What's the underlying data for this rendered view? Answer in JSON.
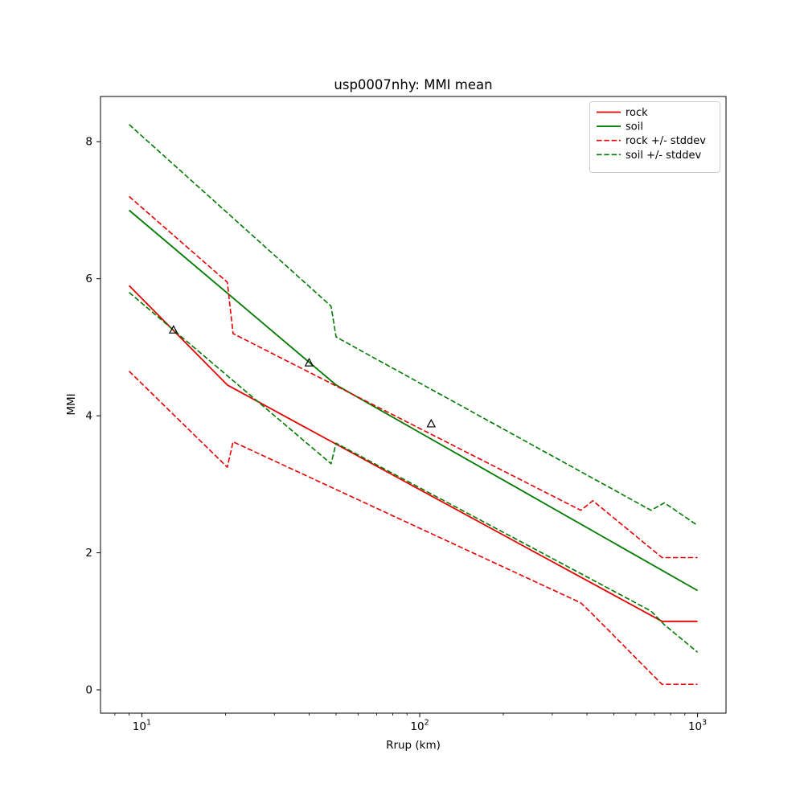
{
  "figure": {
    "title": "usp0007nhy: MMI mean"
  },
  "chart_data": {
    "type": "line",
    "title": "usp0007nhy: MMI mean",
    "xlabel": "Rrup (km)",
    "ylabel": "MMI",
    "xscale": "log",
    "yscale": "linear",
    "xlim": [
      7.1,
      1266
    ],
    "ylim": [
      -0.34,
      8.66
    ],
    "grid": false,
    "frame_color": "#000000",
    "yticks": {
      "values": [
        0,
        2,
        4,
        6,
        8
      ],
      "labels": [
        "0",
        "2",
        "4",
        "6",
        "8"
      ]
    },
    "xticks": {
      "values": [
        10,
        100,
        1000
      ],
      "mantissa": "10",
      "exponents": [
        "1",
        "2",
        "3"
      ]
    },
    "xminorticks": [
      8,
      9,
      20,
      30,
      40,
      50,
      60,
      70,
      80,
      90,
      200,
      300,
      400,
      500,
      600,
      700,
      800,
      900
    ],
    "legend": {
      "position": "upper right"
    },
    "series": [
      {
        "name": "rock-mean",
        "label": "rock",
        "color": "#e60000",
        "style": "solid",
        "width": 1.8,
        "in_legend": true,
        "points": [
          [
            9,
            5.9
          ],
          [
            20.3,
            4.45
          ],
          [
            745,
            1.0
          ],
          [
            1000,
            1.0
          ]
        ]
      },
      {
        "name": "soil-mean",
        "label": "soil",
        "color": "#007a00",
        "style": "solid",
        "width": 1.8,
        "in_legend": true,
        "points": [
          [
            9,
            7.0
          ],
          [
            50,
            4.45
          ],
          [
            1000,
            1.45
          ]
        ]
      },
      {
        "name": "rock-plus-stddev",
        "label": "rock +/- stddev",
        "color": "#e60000",
        "style": "dashed",
        "width": 1.6,
        "in_legend": true,
        "points": [
          [
            9,
            7.2
          ],
          [
            20.3,
            5.95
          ],
          [
            21.3,
            5.2
          ],
          [
            380,
            2.62
          ],
          [
            420,
            2.76
          ],
          [
            745,
            1.93
          ],
          [
            1000,
            1.93
          ]
        ]
      },
      {
        "name": "soil-plus-stddev",
        "label": "soil +/- stddev",
        "color": "#007a00",
        "style": "dashed",
        "width": 1.6,
        "in_legend": true,
        "points": [
          [
            9,
            8.25
          ],
          [
            48,
            5.6
          ],
          [
            50,
            5.15
          ],
          [
            680,
            2.62
          ],
          [
            760,
            2.73
          ],
          [
            1000,
            2.4
          ]
        ]
      },
      {
        "name": "rock-minus-stddev",
        "label": "",
        "color": "#e60000",
        "style": "dashed",
        "width": 1.6,
        "in_legend": false,
        "points": [
          [
            9,
            4.65
          ],
          [
            20.3,
            3.25
          ],
          [
            21.3,
            3.62
          ],
          [
            380,
            1.27
          ],
          [
            420,
            1.1
          ],
          [
            745,
            0.08
          ],
          [
            1000,
            0.08
          ]
        ]
      },
      {
        "name": "soil-minus-stddev",
        "label": "",
        "color": "#007a00",
        "style": "dashed",
        "width": 1.6,
        "in_legend": false,
        "points": [
          [
            9,
            5.8
          ],
          [
            48,
            3.3
          ],
          [
            50,
            3.6
          ],
          [
            680,
            1.15
          ],
          [
            760,
            0.95
          ],
          [
            1000,
            0.55
          ]
        ]
      }
    ],
    "markers": {
      "name": "observed-intensity",
      "shape": "triangle-up",
      "edge_color": "#000000",
      "fill": "none",
      "points": [
        [
          13,
          5.25
        ],
        [
          40,
          4.77
        ],
        [
          110,
          3.88
        ]
      ]
    }
  }
}
